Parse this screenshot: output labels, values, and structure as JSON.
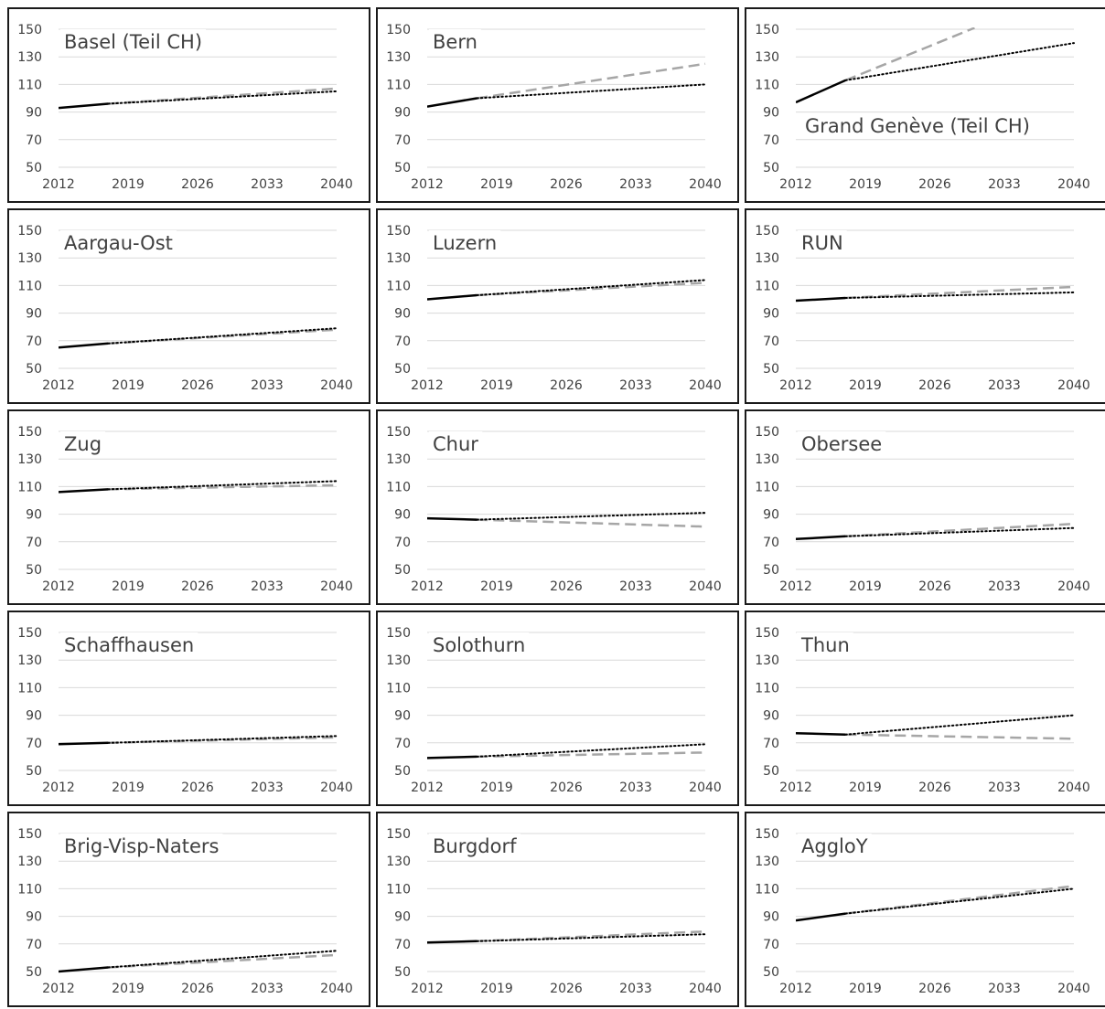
{
  "colors": {
    "observed": "#000000",
    "scenario_dotted": "#000000",
    "scenario_dashed": "#a6a6a6",
    "gridline": "#d9d9d9",
    "text": "#404040",
    "frame": "#1a1a1a"
  },
  "chart_data": [
    {
      "type": "line",
      "title": "Basel (Teil CH)",
      "x_ticks": [
        "2012",
        "2019",
        "2026",
        "2033",
        "2040"
      ],
      "y_ticks": [
        "50",
        "70",
        "90",
        "110",
        "130",
        "150"
      ],
      "ylim": [
        50,
        150
      ],
      "xlim": [
        2012,
        2040
      ],
      "grid": "horizontal",
      "series": [
        {
          "style": "solid",
          "x": [
            2012,
            2017
          ],
          "y": [
            93,
            96
          ]
        },
        {
          "style": "dotted",
          "x": [
            2017,
            2040
          ],
          "y": [
            96,
            105
          ]
        },
        {
          "style": "dashed",
          "x": [
            2017,
            2040
          ],
          "y": [
            96,
            107
          ]
        }
      ]
    },
    {
      "type": "line",
      "title": "Bern",
      "x_ticks": [
        "2012",
        "2019",
        "2026",
        "2033",
        "2040"
      ],
      "y_ticks": [
        "50",
        "70",
        "90",
        "110",
        "130",
        "150"
      ],
      "ylim": [
        50,
        150
      ],
      "xlim": [
        2012,
        2040
      ],
      "grid": "horizontal",
      "series": [
        {
          "style": "solid",
          "x": [
            2012,
            2017
          ],
          "y": [
            94,
            100
          ]
        },
        {
          "style": "dotted",
          "x": [
            2017,
            2040
          ],
          "y": [
            100,
            110
          ]
        },
        {
          "style": "dashed",
          "x": [
            2017,
            2040
          ],
          "y": [
            100,
            125
          ]
        }
      ]
    },
    {
      "type": "line",
      "title": "Grand Genève (Teil CH)",
      "x_ticks": [
        "2012",
        "2019",
        "2026",
        "2033",
        "2040"
      ],
      "y_ticks": [
        "50",
        "70",
        "90",
        "110",
        "130",
        "150"
      ],
      "ylim": [
        50,
        150
      ],
      "xlim": [
        2012,
        2040
      ],
      "grid": "horizontal",
      "series": [
        {
          "style": "solid",
          "x": [
            2012,
            2017
          ],
          "y": [
            97,
            113
          ]
        },
        {
          "style": "dotted",
          "x": [
            2017,
            2040
          ],
          "y": [
            113,
            140
          ]
        },
        {
          "style": "dashed",
          "x": [
            2017,
            2030
          ],
          "y": [
            113,
            151
          ]
        }
      ]
    },
    {
      "type": "line",
      "title": "Aargau-Ost",
      "x_ticks": [
        "2012",
        "2019",
        "2026",
        "2033",
        "2040"
      ],
      "y_ticks": [
        "50",
        "70",
        "90",
        "110",
        "130",
        "150"
      ],
      "ylim": [
        50,
        150
      ],
      "xlim": [
        2012,
        2040
      ],
      "grid": "horizontal",
      "series": [
        {
          "style": "solid",
          "x": [
            2012,
            2017
          ],
          "y": [
            65,
            68
          ]
        },
        {
          "style": "dotted",
          "x": [
            2017,
            2040
          ],
          "y": [
            68,
            79
          ]
        },
        {
          "style": "dashed",
          "x": [
            2017,
            2040
          ],
          "y": [
            68,
            78
          ]
        }
      ]
    },
    {
      "type": "line",
      "title": "Luzern",
      "x_ticks": [
        "2012",
        "2019",
        "2026",
        "2033",
        "2040"
      ],
      "y_ticks": [
        "50",
        "70",
        "90",
        "110",
        "130",
        "150"
      ],
      "ylim": [
        50,
        150
      ],
      "xlim": [
        2012,
        2040
      ],
      "grid": "horizontal",
      "series": [
        {
          "style": "solid",
          "x": [
            2012,
            2017
          ],
          "y": [
            100,
            103
          ]
        },
        {
          "style": "dotted",
          "x": [
            2017,
            2040
          ],
          "y": [
            103,
            114
          ]
        },
        {
          "style": "dashed",
          "x": [
            2017,
            2040
          ],
          "y": [
            103,
            112
          ]
        }
      ]
    },
    {
      "type": "line",
      "title": "RUN",
      "x_ticks": [
        "2012",
        "2019",
        "2026",
        "2033",
        "2040"
      ],
      "y_ticks": [
        "50",
        "70",
        "90",
        "110",
        "130",
        "150"
      ],
      "ylim": [
        50,
        150
      ],
      "xlim": [
        2012,
        2040
      ],
      "grid": "horizontal",
      "series": [
        {
          "style": "solid",
          "x": [
            2012,
            2017
          ],
          "y": [
            99,
            101
          ]
        },
        {
          "style": "dotted",
          "x": [
            2017,
            2040
          ],
          "y": [
            101,
            105
          ]
        },
        {
          "style": "dashed",
          "x": [
            2017,
            2040
          ],
          "y": [
            101,
            109
          ]
        }
      ]
    },
    {
      "type": "line",
      "title": "Zug",
      "x_ticks": [
        "2012",
        "2019",
        "2026",
        "2033",
        "2040"
      ],
      "y_ticks": [
        "50",
        "70",
        "90",
        "110",
        "130",
        "150"
      ],
      "ylim": [
        50,
        150
      ],
      "xlim": [
        2012,
        2040
      ],
      "grid": "horizontal",
      "series": [
        {
          "style": "solid",
          "x": [
            2012,
            2017
          ],
          "y": [
            106,
            108
          ]
        },
        {
          "style": "dotted",
          "x": [
            2017,
            2040
          ],
          "y": [
            108,
            114
          ]
        },
        {
          "style": "dashed",
          "x": [
            2017,
            2040
          ],
          "y": [
            108,
            111
          ]
        }
      ]
    },
    {
      "type": "line",
      "title": "Chur",
      "x_ticks": [
        "2012",
        "2019",
        "2026",
        "2033",
        "2040"
      ],
      "y_ticks": [
        "50",
        "70",
        "90",
        "110",
        "130",
        "150"
      ],
      "ylim": [
        50,
        150
      ],
      "xlim": [
        2012,
        2040
      ],
      "grid": "horizontal",
      "series": [
        {
          "style": "solid",
          "x": [
            2012,
            2017
          ],
          "y": [
            87,
            86
          ]
        },
        {
          "style": "dotted",
          "x": [
            2017,
            2040
          ],
          "y": [
            86,
            91
          ]
        },
        {
          "style": "dashed",
          "x": [
            2017,
            2040
          ],
          "y": [
            86,
            81
          ]
        }
      ]
    },
    {
      "type": "line",
      "title": "Obersee",
      "x_ticks": [
        "2012",
        "2019",
        "2026",
        "2033",
        "2040"
      ],
      "y_ticks": [
        "50",
        "70",
        "90",
        "110",
        "130",
        "150"
      ],
      "ylim": [
        50,
        150
      ],
      "xlim": [
        2012,
        2040
      ],
      "grid": "horizontal",
      "series": [
        {
          "style": "solid",
          "x": [
            2012,
            2017
          ],
          "y": [
            72,
            74
          ]
        },
        {
          "style": "dotted",
          "x": [
            2017,
            2040
          ],
          "y": [
            74,
            80
          ]
        },
        {
          "style": "dashed",
          "x": [
            2017,
            2040
          ],
          "y": [
            74,
            83
          ]
        }
      ]
    },
    {
      "type": "line",
      "title": "Schaffhausen",
      "x_ticks": [
        "2012",
        "2019",
        "2026",
        "2033",
        "2040"
      ],
      "y_ticks": [
        "50",
        "70",
        "90",
        "110",
        "130",
        "150"
      ],
      "ylim": [
        50,
        150
      ],
      "xlim": [
        2012,
        2040
      ],
      "grid": "horizontal",
      "series": [
        {
          "style": "solid",
          "x": [
            2012,
            2017
          ],
          "y": [
            69,
            70
          ]
        },
        {
          "style": "dotted",
          "x": [
            2017,
            2040
          ],
          "y": [
            70,
            75
          ]
        },
        {
          "style": "dashed",
          "x": [
            2017,
            2040
          ],
          "y": [
            70,
            74
          ]
        }
      ]
    },
    {
      "type": "line",
      "title": "Solothurn",
      "x_ticks": [
        "2012",
        "2019",
        "2026",
        "2033",
        "2040"
      ],
      "y_ticks": [
        "50",
        "70",
        "90",
        "110",
        "130",
        "150"
      ],
      "ylim": [
        50,
        150
      ],
      "xlim": [
        2012,
        2040
      ],
      "grid": "horizontal",
      "series": [
        {
          "style": "solid",
          "x": [
            2012,
            2017
          ],
          "y": [
            59,
            60
          ]
        },
        {
          "style": "dotted",
          "x": [
            2017,
            2040
          ],
          "y": [
            60,
            69
          ]
        },
        {
          "style": "dashed",
          "x": [
            2017,
            2040
          ],
          "y": [
            60,
            63
          ]
        }
      ]
    },
    {
      "type": "line",
      "title": "Thun",
      "x_ticks": [
        "2012",
        "2019",
        "2026",
        "2033",
        "2040"
      ],
      "y_ticks": [
        "50",
        "70",
        "90",
        "110",
        "130",
        "150"
      ],
      "ylim": [
        50,
        150
      ],
      "xlim": [
        2012,
        2040
      ],
      "grid": "horizontal",
      "series": [
        {
          "style": "solid",
          "x": [
            2012,
            2017
          ],
          "y": [
            77,
            76
          ]
        },
        {
          "style": "dotted",
          "x": [
            2017,
            2040
          ],
          "y": [
            76,
            90
          ]
        },
        {
          "style": "dashed",
          "x": [
            2017,
            2040
          ],
          "y": [
            76,
            73
          ]
        }
      ]
    },
    {
      "type": "line",
      "title": "Brig-Visp-Naters",
      "x_ticks": [
        "2012",
        "2019",
        "2026",
        "2033",
        "2040"
      ],
      "y_ticks": [
        "50",
        "70",
        "90",
        "110",
        "130",
        "150"
      ],
      "ylim": [
        50,
        150
      ],
      "xlim": [
        2012,
        2040
      ],
      "grid": "horizontal",
      "series": [
        {
          "style": "solid",
          "x": [
            2012,
            2017
          ],
          "y": [
            50,
            53
          ]
        },
        {
          "style": "dotted",
          "x": [
            2017,
            2040
          ],
          "y": [
            53,
            65
          ]
        },
        {
          "style": "dashed",
          "x": [
            2017,
            2040
          ],
          "y": [
            53,
            62
          ]
        }
      ]
    },
    {
      "type": "line",
      "title": "Burgdorf",
      "x_ticks": [
        "2012",
        "2019",
        "2026",
        "2033",
        "2040"
      ],
      "y_ticks": [
        "50",
        "70",
        "90",
        "110",
        "130",
        "150"
      ],
      "ylim": [
        50,
        150
      ],
      "xlim": [
        2012,
        2040
      ],
      "grid": "horizontal",
      "series": [
        {
          "style": "solid",
          "x": [
            2012,
            2017
          ],
          "y": [
            71,
            72
          ]
        },
        {
          "style": "dotted",
          "x": [
            2017,
            2040
          ],
          "y": [
            72,
            77
          ]
        },
        {
          "style": "dashed",
          "x": [
            2017,
            2040
          ],
          "y": [
            72,
            79
          ]
        }
      ]
    },
    {
      "type": "line",
      "title": "AggloY",
      "x_ticks": [
        "2012",
        "2019",
        "2026",
        "2033",
        "2040"
      ],
      "y_ticks": [
        "50",
        "70",
        "90",
        "110",
        "130",
        "150"
      ],
      "ylim": [
        50,
        150
      ],
      "xlim": [
        2012,
        2040
      ],
      "grid": "horizontal",
      "series": [
        {
          "style": "solid",
          "x": [
            2012,
            2017
          ],
          "y": [
            87,
            92
          ]
        },
        {
          "style": "dotted",
          "x": [
            2017,
            2040
          ],
          "y": [
            92,
            110
          ]
        },
        {
          "style": "dashed",
          "x": [
            2017,
            2040
          ],
          "y": [
            92,
            112
          ]
        }
      ]
    }
  ]
}
